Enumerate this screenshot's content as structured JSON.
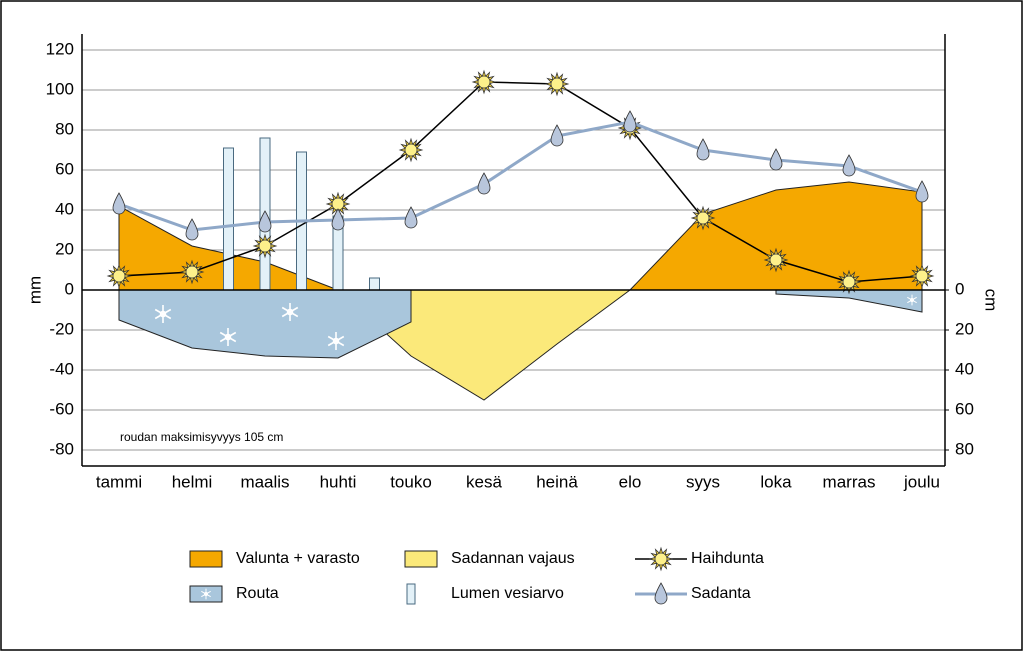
{
  "chart_data": {
    "type": "combo",
    "categories": [
      "tammi",
      "helmi",
      "maalis",
      "huhti",
      "touko",
      "kesä",
      "heinä",
      "elo",
      "syys",
      "loka",
      "marras",
      "joulu"
    ],
    "ylabel": "mm",
    "y2label": "cm",
    "ylim": [
      -88,
      128
    ],
    "yticks": [
      -80,
      -60,
      -40,
      -20,
      0,
      20,
      40,
      60,
      80,
      100,
      120
    ],
    "y2lim": [
      88,
      -128
    ],
    "y2ticks": [
      0,
      20,
      40,
      60,
      80
    ],
    "grid": true,
    "legend": "bottom",
    "annotation": "roudan maksimisyvyys 105 cm",
    "series": [
      {
        "name": "Valunta + varasto",
        "type": "area",
        "color": "#f5a800",
        "values": [
          42,
          22,
          14,
          0,
          null,
          null,
          null,
          0,
          38,
          50,
          54,
          49
        ]
      },
      {
        "name": "Sadannan vajaus",
        "type": "area",
        "color": "#fbe97a",
        "values": [
          null,
          null,
          null,
          0,
          -33,
          -55,
          -27,
          0,
          null,
          null,
          null,
          null
        ]
      },
      {
        "name": "Haihdunta",
        "type": "line",
        "marker": "sun",
        "color": "#000000",
        "values": [
          7,
          9,
          22,
          43,
          70,
          104,
          103,
          81,
          36,
          15,
          4,
          7
        ]
      },
      {
        "name": "Routa",
        "type": "area",
        "axis": "y2",
        "color": "#a9c6dc",
        "values": [
          15,
          29,
          33,
          34,
          16,
          null,
          null,
          null,
          null,
          2,
          4,
          11
        ]
      },
      {
        "name": "Lumen vesiarvo",
        "type": "bar",
        "color": "#e3f1f8",
        "x": [
          1.5,
          2,
          2.5,
          3,
          3.5
        ],
        "values": [
          71,
          76,
          69,
          37,
          6
        ]
      },
      {
        "name": "Sadanta",
        "type": "line",
        "marker": "drop",
        "color": "#8fa8c8",
        "values": [
          43,
          30,
          34,
          35,
          36,
          53,
          77,
          84,
          70,
          65,
          62,
          49
        ]
      }
    ]
  }
}
